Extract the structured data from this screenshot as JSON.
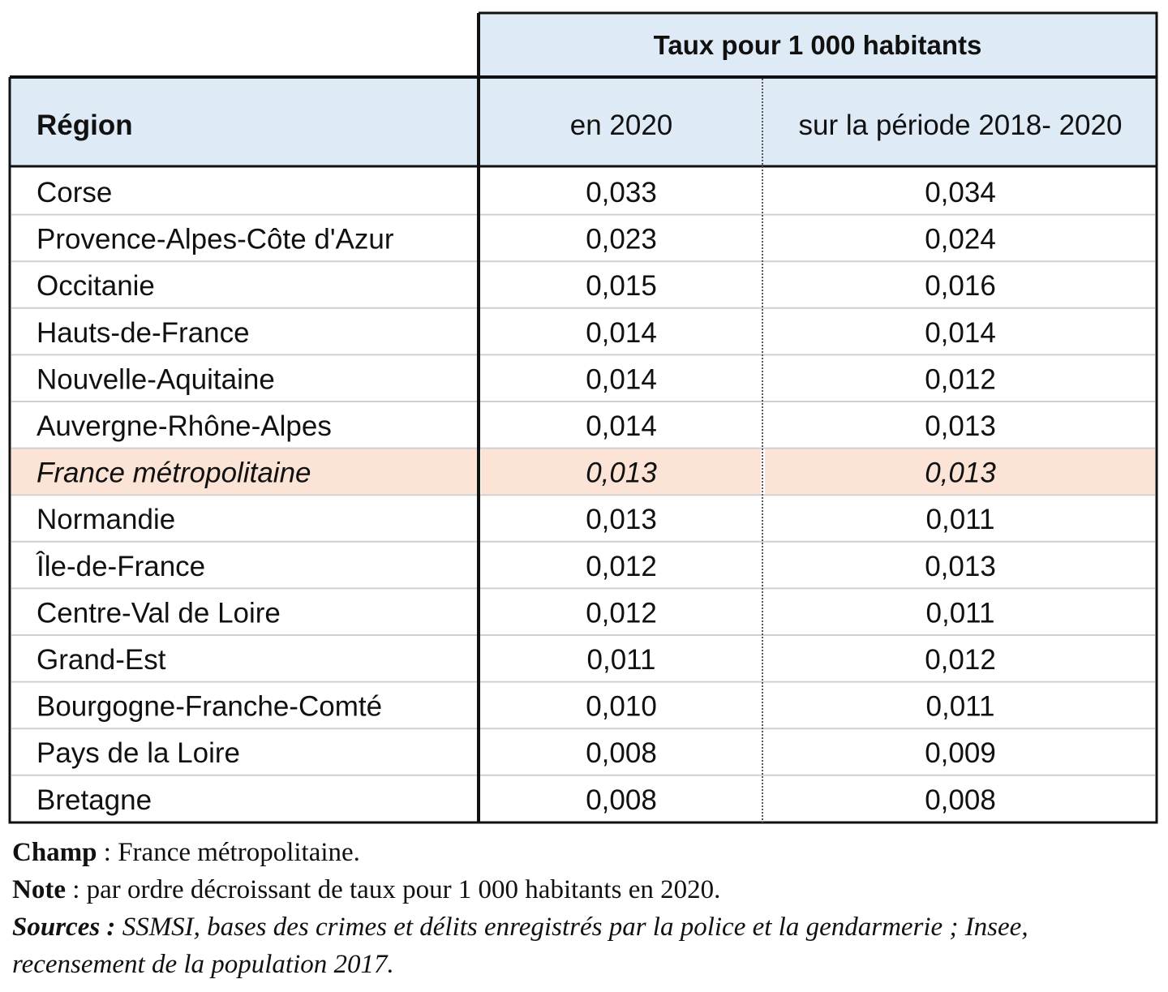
{
  "chart_data": {
    "type": "table",
    "group_header": "Taux pour 1 000 habitants",
    "columns": [
      "Région",
      "en 2020",
      "sur la période 2018- 2020"
    ],
    "rows": [
      {
        "region": "Corse",
        "v2020": "0,033",
        "v2018_2020": "0,034"
      },
      {
        "region": "Provence-Alpes-Côte d'Azur",
        "v2020": "0,023",
        "v2018_2020": "0,024"
      },
      {
        "region": "Occitanie",
        "v2020": "0,015",
        "v2018_2020": "0,016"
      },
      {
        "region": "Hauts-de-France",
        "v2020": "0,014",
        "v2018_2020": "0,014"
      },
      {
        "region": "Nouvelle-Aquitaine",
        "v2020": "0,014",
        "v2018_2020": "0,012"
      },
      {
        "region": "Auvergne-Rhône-Alpes",
        "v2020": "0,014",
        "v2018_2020": "0,013"
      },
      {
        "region": "France métropolitaine",
        "v2020": "0,013",
        "v2018_2020": "0,013",
        "highlight": true
      },
      {
        "region": "Normandie",
        "v2020": "0,013",
        "v2018_2020": "0,011"
      },
      {
        "region": "Île-de-France",
        "v2020": "0,012",
        "v2018_2020": "0,013"
      },
      {
        "region": "Centre-Val de Loire",
        "v2020": "0,012",
        "v2018_2020": "0,011"
      },
      {
        "region": "Grand-Est",
        "v2020": "0,011",
        "v2018_2020": "0,012"
      },
      {
        "region": "Bourgogne-Franche-Comté",
        "v2020": "0,010",
        "v2018_2020": "0,011"
      },
      {
        "region": "Pays de la Loire",
        "v2020": "0,008",
        "v2018_2020": "0,009"
      },
      {
        "region": "Bretagne",
        "v2020": "0,008",
        "v2018_2020": "0,008"
      }
    ],
    "colors": {
      "header_fill": "#deeaf6",
      "highlight_fill": "#fbe4d5",
      "border": "#111111",
      "row_divider": "#d0d0d0"
    }
  },
  "notes": {
    "champ_label": "Champ",
    "champ_text": " : France métropolitaine.",
    "note_label": "Note",
    "note_text": " : par ordre décroissant de taux pour 1 000 habitants en 2020.",
    "sources_label": "Sources :",
    "sources_text_1": " SSMSI, bases des crimes et délits enregistrés par la police et la gendarmerie ; Insee,",
    "sources_text_2": "recensement de la population 2017."
  }
}
